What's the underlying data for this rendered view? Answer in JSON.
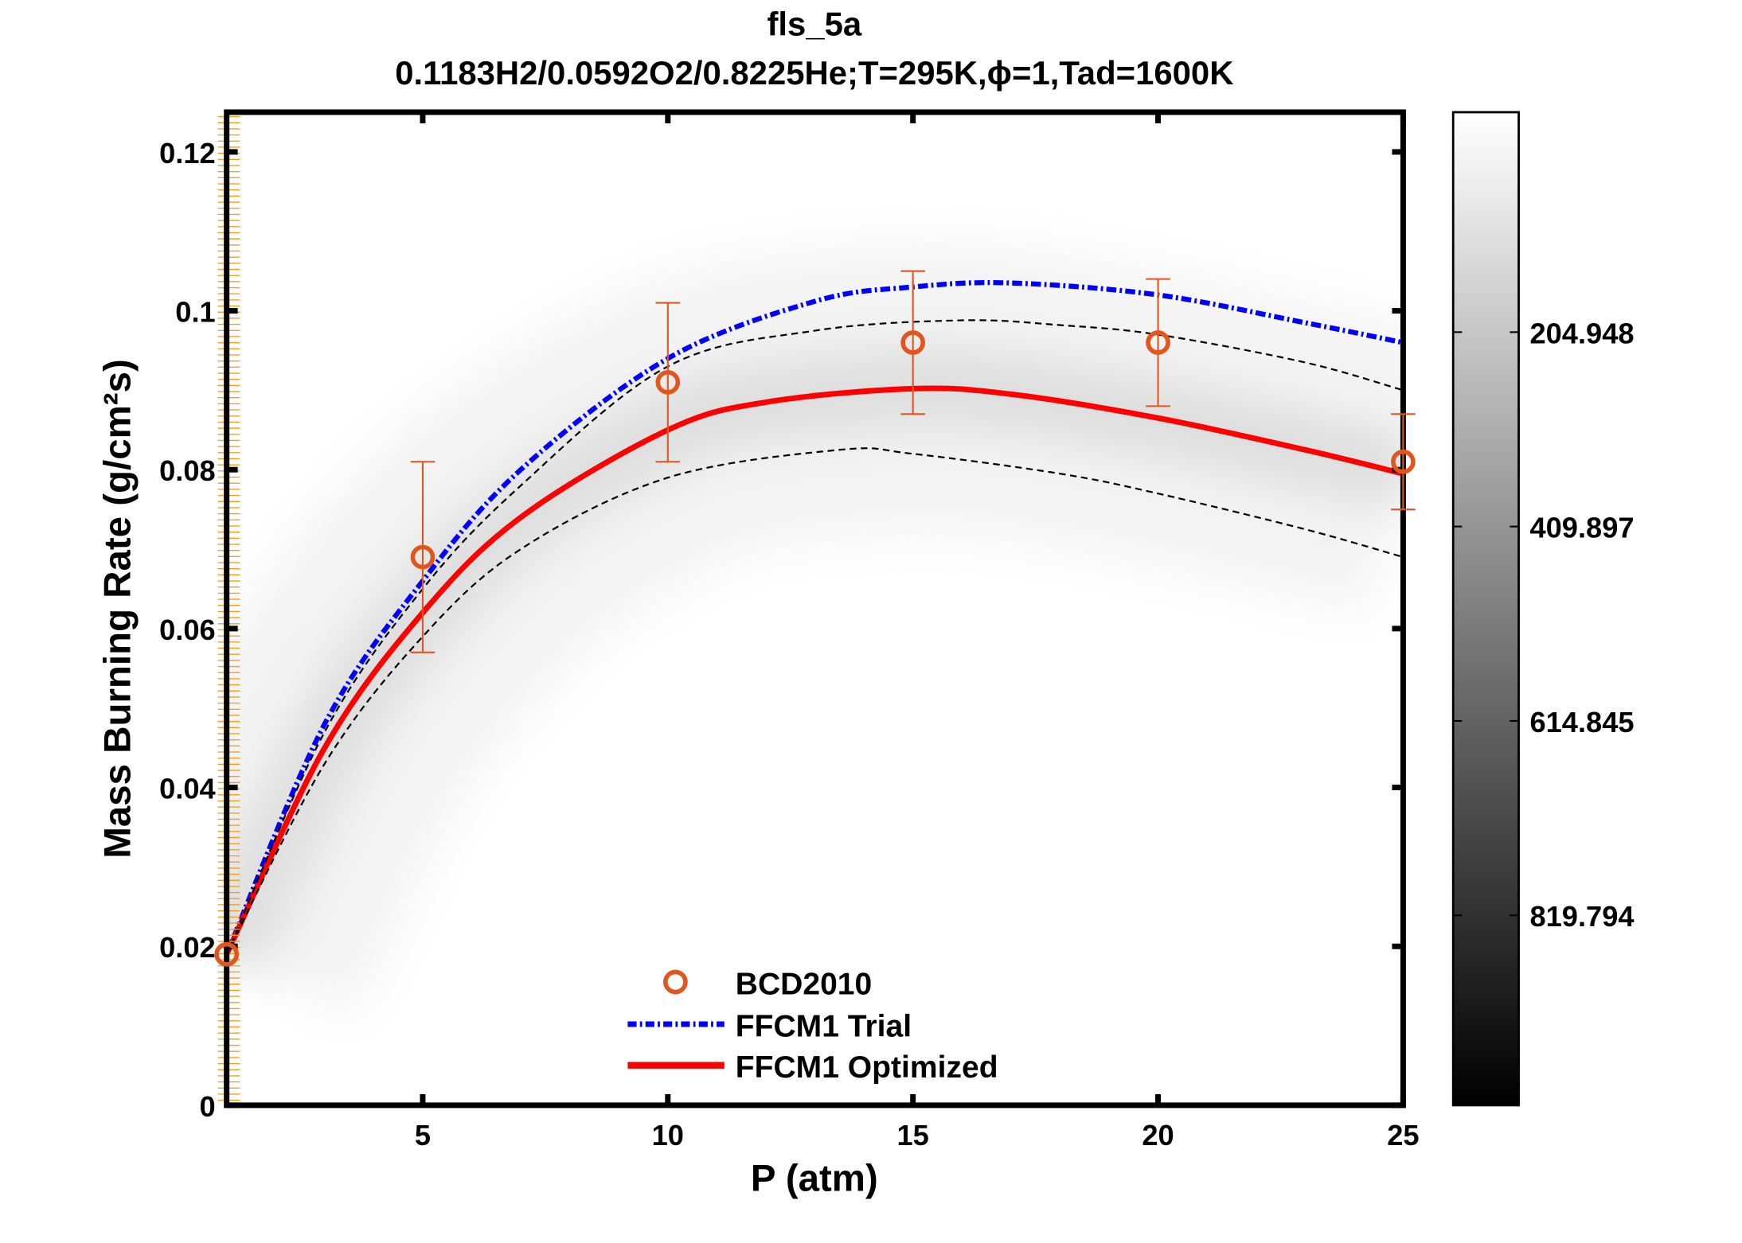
{
  "chart_data": {
    "type": "line",
    "title": "fls_5a",
    "subtitle": "0.1183H2/0.0592O2/0.8225He;T=295K,ϕ=1,Tad=1600K",
    "xlabel": "P (atm)",
    "ylabel": "Mass Burning Rate (g/cm²s)",
    "xlim": [
      1,
      25
    ],
    "ylim": [
      0,
      0.125
    ],
    "xticks": [
      5,
      10,
      15,
      20,
      25
    ],
    "xtick_labels": [
      "5",
      "10",
      "15",
      "20",
      "25"
    ],
    "yticks": [
      0,
      0.02,
      0.04,
      0.06,
      0.08,
      0.1,
      0.12
    ],
    "ytick_labels": [
      "0",
      "0.02",
      "0.04",
      "0.06",
      "0.08",
      "0.1",
      "0.12"
    ],
    "grid": false,
    "legend_placement": "bottom-center",
    "series": [
      {
        "name": "BCD2010",
        "kind": "scatter-errorbar",
        "color": "#e0561e",
        "x": [
          1,
          5,
          10,
          15,
          20,
          25
        ],
        "y": [
          0.019,
          0.069,
          0.091,
          0.096,
          0.096,
          0.081
        ],
        "err_low": [
          null,
          0.057,
          0.081,
          0.087,
          0.088,
          0.075
        ],
        "err_high": [
          null,
          0.081,
          0.101,
          0.105,
          0.104,
          0.087
        ]
      },
      {
        "name": "FFCM1 Trial",
        "kind": "line",
        "style": "dash-dot",
        "color": "#0000ff",
        "x": [
          1,
          3,
          5,
          7,
          10,
          13,
          15,
          17,
          20,
          23,
          25
        ],
        "y": [
          0.019,
          0.048,
          0.066,
          0.08,
          0.094,
          0.1012,
          0.103,
          0.1035,
          0.102,
          0.0985,
          0.096
        ]
      },
      {
        "name": "FFCM1 Optimized",
        "kind": "line",
        "style": "solid",
        "color": "#ff0000",
        "x": [
          1,
          3,
          5,
          7,
          10,
          12,
          15,
          17,
          20,
          23,
          25
        ],
        "y": [
          0.019,
          0.045,
          0.062,
          0.074,
          0.085,
          0.0885,
          0.0902,
          0.0895,
          0.0865,
          0.0825,
          0.0795
        ]
      },
      {
        "kind": "line",
        "style": "dashed",
        "color": "#000000",
        "role": "uncertainty-upper",
        "x": [
          1,
          3,
          5,
          7,
          10,
          13,
          16,
          18,
          20,
          23,
          25
        ],
        "y": [
          0.019,
          0.047,
          0.065,
          0.078,
          0.093,
          0.0975,
          0.0988,
          0.0982,
          0.097,
          0.0935,
          0.09
        ]
      },
      {
        "kind": "line",
        "style": "dashed",
        "color": "#000000",
        "role": "uncertainty-lower",
        "x": [
          1,
          3,
          5,
          7,
          10,
          13.5,
          15,
          18,
          20,
          23,
          25
        ],
        "y": [
          0.019,
          0.043,
          0.059,
          0.07,
          0.079,
          0.0825,
          0.082,
          0.0795,
          0.077,
          0.0725,
          0.069
        ]
      }
    ],
    "colorbar": {
      "colormap": "gray (white top, black bottom)",
      "ticks": [
        204.948,
        409.897,
        614.845,
        819.794
      ],
      "tick_labels": [
        "204.948",
        "409.897",
        "614.845",
        "819.794"
      ]
    }
  }
}
